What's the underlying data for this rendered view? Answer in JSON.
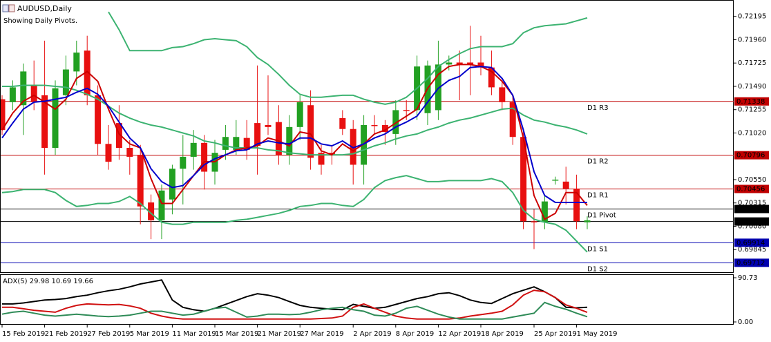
{
  "chart_data": [
    {
      "type": "candlestick",
      "title": "AUDUSD,Daily",
      "subtitle": "Showing Daily Pivots.",
      "up_color": "#22a022",
      "down_color": "#e81010",
      "categories": [
        "15 Feb 2019",
        null,
        null,
        null,
        "21 Feb 2019",
        null,
        null,
        null,
        "27 Feb 2019",
        null,
        null,
        null,
        "5 Mar 2019",
        null,
        null,
        null,
        "11 Mar 2019",
        null,
        null,
        null,
        "15 Mar 2019",
        null,
        null,
        null,
        "21 Mar 2019",
        null,
        null,
        null,
        "27 Mar 2019",
        null,
        null,
        null,
        null,
        "2 Apr 2019",
        null,
        null,
        null,
        "8 Apr 2019",
        null,
        null,
        null,
        "12 Apr 2019",
        null,
        null,
        null,
        "18 Apr 2019",
        null,
        null,
        null,
        null,
        "25 Apr 2019",
        null,
        null,
        null,
        "1 May 2019",
        null
      ],
      "open": [
        0.7136,
        0.7133,
        0.713,
        0.715,
        0.714,
        0.7087,
        0.714,
        0.7164,
        0.7185,
        0.714,
        0.7091,
        0.7112,
        0.7087,
        0.708,
        0.7032,
        0.7014,
        0.7035,
        0.7066,
        0.7078,
        0.7092,
        0.7063,
        0.7085,
        0.7085,
        0.7097,
        0.7112,
        0.711,
        0.7113,
        0.708,
        0.7108,
        0.713,
        0.7082,
        0.7082,
        0.7117,
        0.7106,
        0.707,
        0.711,
        0.711,
        0.7101,
        0.7125,
        0.7125,
        0.7122,
        0.7125,
        0.7171,
        0.7173,
        0.7173,
        0.7173,
        0.7168,
        0.7148,
        0.7133,
        0.7098,
        0.7013,
        0.7012,
        0.7054,
        0.7053,
        0.7046,
        0.7012
      ],
      "high": [
        0.714,
        0.7155,
        0.7172,
        0.7175,
        0.7195,
        0.7155,
        0.718,
        0.7195,
        0.72,
        0.715,
        0.711,
        0.713,
        0.7095,
        0.709,
        0.704,
        0.705,
        0.707,
        0.71,
        0.7105,
        0.71,
        0.7095,
        0.711,
        0.7115,
        0.7115,
        0.717,
        0.716,
        0.713,
        0.712,
        0.714,
        0.7145,
        0.709,
        0.709,
        0.7125,
        0.7115,
        0.712,
        0.712,
        0.7115,
        0.7135,
        0.7135,
        0.718,
        0.7175,
        0.7195,
        0.718,
        0.7185,
        0.721,
        0.72,
        0.7185,
        0.7155,
        0.714,
        0.7105,
        0.7025,
        0.704,
        0.7058,
        0.7068,
        0.706,
        0.7018
      ],
      "low": [
        0.71,
        0.7125,
        0.71,
        0.7125,
        0.706,
        0.708,
        0.713,
        0.715,
        0.713,
        0.708,
        0.7065,
        0.7075,
        0.706,
        0.701,
        0.6995,
        0.6995,
        0.702,
        0.703,
        0.7065,
        0.7045,
        0.705,
        0.7075,
        0.708,
        0.7075,
        0.706,
        0.71,
        0.707,
        0.707,
        0.7095,
        0.7065,
        0.706,
        0.707,
        0.71,
        0.705,
        0.705,
        0.71,
        0.709,
        0.709,
        0.7115,
        0.7115,
        0.711,
        0.7115,
        0.7165,
        0.7135,
        0.714,
        0.716,
        0.714,
        0.7125,
        0.709,
        0.7005,
        0.6985,
        0.7005,
        0.705,
        0.703,
        0.7005,
        0.7005
      ],
      "close": [
        0.7105,
        0.7148,
        0.7164,
        0.7133,
        0.7087,
        0.7147,
        0.7166,
        0.7183,
        0.714,
        0.7091,
        0.7073,
        0.7087,
        0.7078,
        0.7028,
        0.7014,
        0.7044,
        0.7066,
        0.7078,
        0.7092,
        0.7063,
        0.7082,
        0.7098,
        0.7098,
        0.7085,
        0.7089,
        0.7108,
        0.708,
        0.7108,
        0.7133,
        0.7077,
        0.707,
        0.708,
        0.7106,
        0.707,
        0.711,
        0.7109,
        0.7103,
        0.7125,
        0.7124,
        0.7169,
        0.717,
        0.7171,
        0.7173,
        0.7171,
        0.7171,
        0.7168,
        0.7148,
        0.7133,
        0.7098,
        0.7013,
        0.7012,
        0.7033,
        0.7055,
        0.7046,
        0.7013,
        0.7014
      ],
      "lines": [
        {
          "color": "#3cb371",
          "values": [
            null,
            null,
            null,
            null,
            null,
            null,
            null,
            null,
            null,
            null,
            0.7224,
            0.7206,
            0.7185,
            0.7185,
            0.7185,
            0.7185,
            0.7188,
            0.7189,
            0.7192,
            0.7196,
            0.7197,
            0.7196,
            0.7195,
            0.7189,
            0.7178,
            0.7171,
            0.7161,
            0.715,
            0.7141,
            0.7138,
            0.7138,
            0.7139,
            0.714,
            0.714,
            0.7136,
            0.7133,
            0.7131,
            0.7133,
            0.7138,
            0.7147,
            0.7157,
            0.7169,
            0.7176,
            0.7182,
            0.7187,
            0.7189,
            0.7189,
            0.7189,
            0.7192,
            0.7203,
            0.7208,
            0.721,
            0.7211,
            0.7212,
            0.7215,
            0.7218
          ]
        },
        {
          "color": "#3cb371",
          "values": [
            0.7149,
            0.7149,
            0.715,
            0.715,
            0.715,
            0.7149,
            0.7148,
            0.7145,
            0.7141,
            0.7136,
            0.7129,
            0.7122,
            0.7117,
            0.7113,
            0.711,
            0.7108,
            0.7105,
            0.7102,
            0.7099,
            0.7094,
            0.7092,
            0.7089,
            0.7087,
            0.7087,
            0.7087,
            0.7085,
            0.7084,
            0.7082,
            0.7081,
            0.708,
            0.708,
            0.708,
            0.708,
            0.7081,
            0.7085,
            0.7089,
            0.7092,
            0.7096,
            0.7099,
            0.7101,
            0.7105,
            0.7108,
            0.7112,
            0.7115,
            0.7117,
            0.712,
            0.7123,
            0.7126,
            0.7127,
            0.712,
            0.7115,
            0.7113,
            0.711,
            0.7108,
            0.7105,
            0.7101
          ]
        },
        {
          "color": "#3cb371",
          "values": [
            0.7042,
            0.7043,
            0.7045,
            0.7045,
            0.7045,
            0.7042,
            0.7034,
            0.7028,
            0.7029,
            0.7031,
            0.7031,
            0.7033,
            0.7038,
            0.7031,
            0.7021,
            0.7012,
            0.701,
            0.701,
            0.7012,
            0.7012,
            0.7012,
            0.7012,
            0.7014,
            0.7015,
            0.7017,
            0.7019,
            0.7021,
            0.7024,
            0.7028,
            0.7029,
            0.7031,
            0.7031,
            0.7029,
            0.7028,
            0.7035,
            0.7047,
            0.7054,
            0.7057,
            0.7059,
            0.7056,
            0.7053,
            0.7053,
            0.7054,
            0.7054,
            0.7054,
            0.7054,
            0.7056,
            0.7053,
            0.7042,
            0.7024,
            0.7015,
            0.7012,
            0.701,
            0.7004,
            0.6993,
            0.6982
          ]
        },
        {
          "color": "#cc0000",
          "values": [
            0.7105,
            0.7122,
            0.7134,
            0.714,
            0.7133,
            0.7126,
            0.7136,
            0.7157,
            0.7164,
            0.7154,
            0.7126,
            0.7101,
            0.7091,
            0.7087,
            0.7056,
            0.7031,
            0.7031,
            0.7045,
            0.7059,
            0.7073,
            0.7073,
            0.708,
            0.7085,
            0.7087,
            0.7089,
            0.7097,
            0.7094,
            0.7089,
            0.7103,
            0.7101,
            0.7084,
            0.708,
            0.7091,
            0.7084,
            0.7091,
            0.7101,
            0.7105,
            0.7112,
            0.7119,
            0.7126,
            0.7147,
            0.7161,
            0.7169,
            0.7171,
            0.7171,
            0.7169,
            0.7164,
            0.7154,
            0.714,
            0.7097,
            0.7039,
            0.7015,
            0.7021,
            0.7042,
            0.7042,
            0.7029
          ]
        },
        {
          "color": "#0000cc",
          "values": [
            0.7097,
            0.7112,
            0.7126,
            0.7133,
            0.7134,
            0.7136,
            0.7138,
            0.7143,
            0.7147,
            0.7141,
            0.7129,
            0.7113,
            0.7097,
            0.7087,
            0.7066,
            0.7053,
            0.7047,
            0.7049,
            0.7059,
            0.707,
            0.7076,
            0.708,
            0.7084,
            0.7085,
            0.7091,
            0.7094,
            0.7092,
            0.7091,
            0.7097,
            0.7097,
            0.7091,
            0.7089,
            0.7094,
            0.7087,
            0.7091,
            0.7097,
            0.7101,
            0.7108,
            0.7113,
            0.7119,
            0.7133,
            0.7147,
            0.7155,
            0.7159,
            0.7168,
            0.7169,
            0.7168,
            0.7157,
            0.714,
            0.7105,
            0.7063,
            0.7039,
            0.7032,
            0.7032,
            0.7032,
            0.7032
          ]
        }
      ],
      "levels": [
        {
          "name": "D1 R3",
          "value": 0.71338,
          "color": "#c00000"
        },
        {
          "name": "D1 R2",
          "value": 0.70796,
          "color": "#c00000"
        },
        {
          "name": "D1 R1",
          "value": 0.70456,
          "color": "#c00000"
        },
        {
          "name": "D1 Pivot",
          "value": 0.70254,
          "color": "#000000"
        },
        {
          "value": 0.70128,
          "color": "#000000"
        },
        {
          "name": "D1 S1",
          "value": 0.69914,
          "color": "#0000b0"
        },
        {
          "name": "D1 S2",
          "value": 0.69712,
          "color": "#0000b0"
        }
      ],
      "ylim": [
        0.6961,
        0.7236
      ],
      "yticks": [
        0.72195,
        {
          "value": 0.7196,
          "label": "0.71960"
        },
        0.71725,
        {
          "value": 0.7149,
          "label": "0.71490"
        },
        0.71255,
        {
          "value": 0.7102,
          "label": "0.71020"
        },
        {
          "value": 0.7055,
          "label": "0.70550"
        },
        0.70315,
        {
          "value": 0.7008,
          "label": "0.70080"
        },
        0.69845
      ]
    },
    {
      "type": "line",
      "title": "ADX(5) 29.98 10.69 19.66",
      "series": [
        {
          "color": "#000000",
          "values": [
            37,
            37,
            39,
            42,
            45,
            46,
            48,
            52,
            55,
            60,
            64,
            67,
            72,
            78,
            82,
            86,
            45,
            30,
            25,
            22,
            28,
            36,
            44,
            52,
            58,
            55,
            50,
            42,
            34,
            30,
            28,
            26,
            25,
            36,
            32,
            28,
            30,
            36,
            42,
            48,
            52,
            58,
            60,
            54,
            45,
            40,
            38,
            48,
            58,
            65,
            72,
            62,
            50,
            30,
            29,
            29.98
          ]
        },
        {
          "color": "#d01010",
          "values": [
            30,
            30,
            27,
            24,
            22,
            20,
            28,
            34,
            37,
            36,
            35,
            36,
            33,
            28,
            18,
            12,
            8,
            6,
            6,
            6,
            6,
            6,
            6,
            6,
            6,
            6,
            6,
            6,
            6,
            6,
            7,
            8,
            12,
            30,
            37,
            28,
            20,
            12,
            8,
            6,
            6,
            6,
            6,
            8,
            12,
            15,
            18,
            22,
            35,
            55,
            65,
            62,
            50,
            35,
            28,
            19.66
          ]
        },
        {
          "color": "#2e8b57",
          "values": [
            16,
            20,
            22,
            18,
            14,
            12,
            14,
            16,
            14,
            12,
            11,
            12,
            14,
            18,
            22,
            22,
            18,
            14,
            16,
            22,
            28,
            30,
            20,
            10,
            12,
            16,
            16,
            15,
            16,
            20,
            25,
            28,
            30,
            25,
            22,
            14,
            12,
            18,
            28,
            32,
            24,
            16,
            10,
            6,
            6,
            6,
            6,
            6,
            10,
            14,
            18,
            40,
            32,
            26,
            18,
            10.69
          ]
        }
      ],
      "ylim": [
        -5.7,
        97.8
      ],
      "yticks": [
        90.73,
        {
          "value": 0,
          "label": "0.00"
        }
      ]
    }
  ]
}
